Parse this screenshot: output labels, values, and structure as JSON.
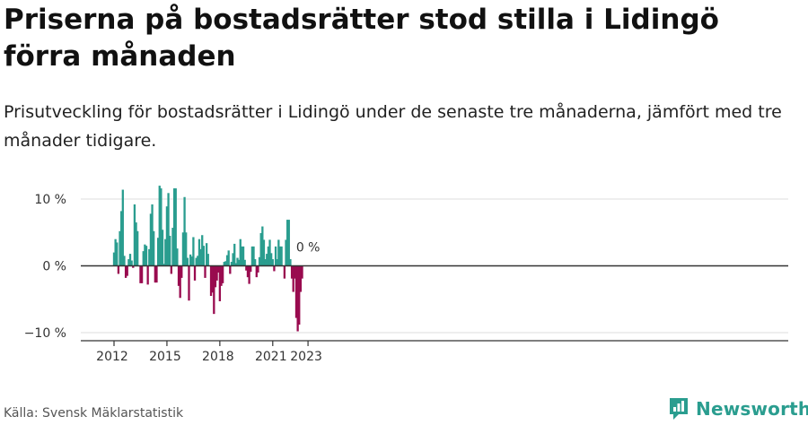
{
  "header": {
    "title": "Priserna på bostadsrätter stod stilla i Lidingö förra månaden",
    "subtitle": "Prisutveckling för bostadsrätter i Lidingö under de senaste tre månaderna, jämfört med tre månader tidigare."
  },
  "footer": {
    "source": "Källa: Svensk Mäklarstatistik",
    "brand": "Newsworthy"
  },
  "colors": {
    "positive": "#2a9d8f",
    "negative": "#990b4f",
    "brand": "#2a9d8f"
  },
  "chart_data": {
    "type": "bar",
    "x_unit": "month",
    "start_month": "2012-01",
    "end_month": "2023-01",
    "ylim": [
      -11,
      13
    ],
    "y_ticks": [
      10,
      0,
      -10
    ],
    "y_tick_labels": [
      "10 %",
      "0 %",
      "−10 %"
    ],
    "x_ticks": [
      2012,
      2015,
      2018,
      2021,
      2023
    ],
    "x_tick_labels": [
      "2012",
      "2015",
      "2018",
      "2021",
      "2023"
    ],
    "last_value_label": "0 %",
    "values": [
      2.0,
      4.0,
      3.5,
      -1.2,
      5.2,
      8.2,
      11.4,
      1.5,
      -1.8,
      -1.5,
      1.0,
      1.8,
      0.8,
      -0.3,
      9.2,
      6.5,
      5.2,
      0.0,
      -2.6,
      -2.6,
      2.2,
      3.2,
      3.0,
      -2.8,
      2.5,
      7.8,
      9.2,
      5.2,
      -2.5,
      -2.5,
      4.2,
      12.0,
      11.6,
      5.4,
      0.3,
      4.0,
      8.9,
      10.9,
      4.5,
      -1.2,
      5.7,
      11.6,
      11.6,
      2.6,
      -3.0,
      -4.8,
      -1.8,
      5.0,
      10.3,
      5.0,
      1.2,
      -5.2,
      1.7,
      1.4,
      4.3,
      -2.2,
      1.2,
      1.5,
      4.0,
      2.5,
      4.6,
      3.0,
      -1.8,
      3.4,
      1.8,
      0.0,
      -4.5,
      -4.0,
      -7.2,
      -3.2,
      -2.2,
      -1.0,
      -5.3,
      -3.0,
      -2.6,
      0.6,
      0.7,
      1.6,
      2.3,
      -1.2,
      0.6,
      1.9,
      3.3,
      0.4,
      1.2,
      0.9,
      4.0,
      2.9,
      2.9,
      0.9,
      -0.7,
      -1.7,
      -2.7,
      -0.9,
      2.9,
      2.9,
      1.0,
      -1.7,
      -1.0,
      1.3,
      4.9,
      5.9,
      3.9,
      1.0,
      1.8,
      2.9,
      3.9,
      1.9,
      1.0,
      -0.8,
      2.9,
      1.0,
      3.9,
      2.9,
      2.9,
      0.0,
      -1.9,
      3.9,
      6.9,
      6.9,
      1.0,
      -1.9,
      -3.9,
      -1.9,
      -7.8,
      -9.8,
      -8.8,
      -3.9,
      -1.9,
      0.0
    ]
  }
}
